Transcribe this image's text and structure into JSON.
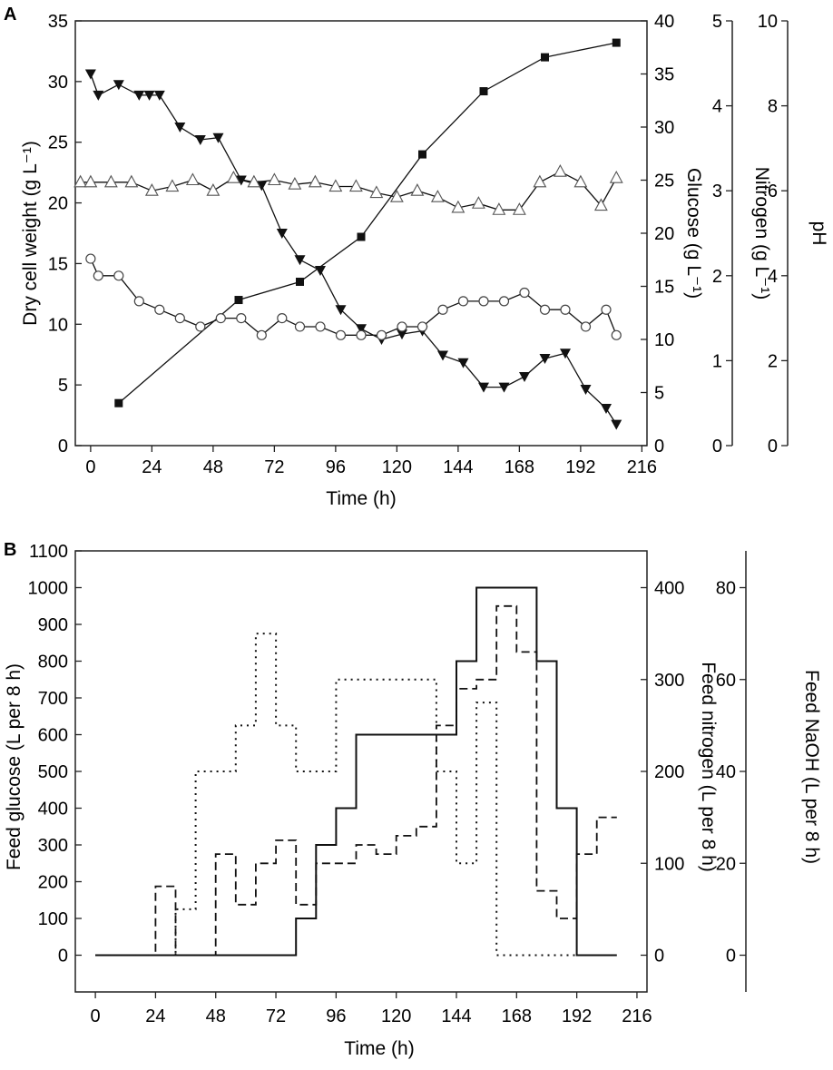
{
  "chart_data": [
    {
      "panel": "A",
      "type": "line",
      "xlabel": "Time (h)",
      "xlim": [
        -6,
        218
      ],
      "xticks": [
        "0",
        "24",
        "48",
        "72",
        "96",
        "120",
        "144",
        "168",
        "192",
        "216"
      ],
      "axes": [
        {
          "id": "dcw",
          "label": "Dry cell weight (g L⁻¹)",
          "side": "left",
          "ylim": [
            0,
            35
          ],
          "ticks": [
            "0",
            "5",
            "10",
            "15",
            "20",
            "25",
            "30",
            "35"
          ]
        },
        {
          "id": "glc",
          "label": "Glucose (g L⁻¹)",
          "side": "right1",
          "ylim": [
            0,
            40
          ],
          "ticks": [
            "0",
            "5",
            "10",
            "15",
            "20",
            "25",
            "30",
            "35",
            "40"
          ]
        },
        {
          "id": "nit",
          "label": "Nitrogen (g L⁻¹)",
          "side": "right2",
          "ylim": [
            0,
            5
          ],
          "ticks": [
            "0",
            "1",
            "2",
            "3",
            "4",
            "5"
          ]
        },
        {
          "id": "ph",
          "label": "pH",
          "side": "right3",
          "ylim": [
            0,
            10
          ],
          "ticks": [
            "0",
            "2",
            "4",
            "6",
            "8",
            "10"
          ]
        }
      ],
      "series": [
        {
          "name": "Dry cell weight",
          "axis": "dcw",
          "marker": "filled-square",
          "x": [
            11,
            58,
            82,
            106,
            130,
            154,
            178,
            206
          ],
          "y": [
            3.5,
            12.0,
            13.5,
            17.2,
            24.0,
            29.2,
            32.0,
            33.2
          ]
        },
        {
          "name": "Glucose",
          "axis": "glc",
          "marker": "filled-triangle-down",
          "x": [
            0,
            3,
            11,
            19,
            23,
            27,
            35,
            43,
            50,
            59,
            67,
            75,
            82,
            90,
            98,
            106,
            114,
            122,
            130,
            138,
            146,
            154,
            162,
            170,
            178,
            186,
            194,
            202,
            206
          ],
          "y": [
            35.0,
            33.0,
            34.0,
            33.0,
            33.0,
            33.0,
            30.0,
            28.8,
            29.0,
            25.0,
            24.5,
            20.0,
            17.5,
            16.5,
            12.8,
            11.0,
            10.0,
            10.5,
            10.8,
            8.5,
            7.8,
            5.5,
            5.5,
            6.5,
            8.2,
            8.7,
            5.3,
            3.5,
            2.0
          ]
        },
        {
          "name": "Nitrogen",
          "axis": "nit",
          "marker": "open-circle",
          "x": [
            0,
            3,
            11,
            19,
            27,
            35,
            43,
            51,
            59,
            67,
            75,
            82,
            90,
            98,
            106,
            114,
            122,
            130,
            138,
            146,
            154,
            162,
            170,
            178,
            186,
            194,
            202,
            206
          ],
          "y": [
            2.2,
            2.0,
            2.0,
            1.7,
            1.6,
            1.5,
            1.4,
            1.5,
            1.5,
            1.3,
            1.5,
            1.4,
            1.4,
            1.3,
            1.3,
            1.3,
            1.4,
            1.4,
            1.6,
            1.7,
            1.7,
            1.7,
            1.8,
            1.6,
            1.6,
            1.4,
            1.6,
            1.3
          ]
        },
        {
          "name": "pH",
          "axis": "ph",
          "marker": "open-triangle-up",
          "x": [
            -4,
            0,
            8,
            16,
            24,
            32,
            40,
            48,
            56,
            64,
            72,
            80,
            88,
            96,
            104,
            112,
            120,
            128,
            136,
            144,
            152,
            160,
            168,
            176,
            184,
            192,
            200,
            206
          ],
          "y": [
            6.2,
            6.2,
            6.2,
            6.2,
            6.0,
            6.1,
            6.25,
            6.0,
            6.3,
            6.2,
            6.25,
            6.15,
            6.2,
            6.1,
            6.1,
            5.95,
            5.85,
            6.0,
            5.85,
            5.6,
            5.7,
            5.55,
            5.55,
            6.2,
            6.45,
            6.2,
            5.65,
            6.3
          ]
        }
      ]
    },
    {
      "panel": "B",
      "type": "line",
      "xlabel": "Time (h)",
      "xlim": [
        -8,
        220
      ],
      "xticks": [
        "0",
        "24",
        "48",
        "72",
        "96",
        "120",
        "144",
        "168",
        "192",
        "216"
      ],
      "axes": [
        {
          "id": "fglc",
          "label": "Feed glucose (L per 8 h)",
          "side": "left",
          "ylim": [
            -100,
            1100
          ],
          "ticks": [
            "0",
            "100",
            "200",
            "300",
            "400",
            "500",
            "600",
            "700",
            "800",
            "900",
            "1000",
            "1100"
          ]
        },
        {
          "id": "fnit",
          "label": "Feed nitrogen (L per 8 h)",
          "side": "right1",
          "ylim": [
            -40,
            440
          ],
          "ticks": [
            "0",
            "100",
            "200",
            "300",
            "400"
          ]
        },
        {
          "id": "fnaoh",
          "label": "Feed NaOH (L per 8 h)",
          "side": "right2",
          "ylim": [
            -8,
            88
          ],
          "ticks": [
            "0",
            "20",
            "40",
            "60",
            "80"
          ]
        }
      ],
      "series": [
        {
          "name": "Feed glucose",
          "axis": "fglc",
          "style": "solid",
          "x": [
            0,
            80,
            80,
            88,
            88,
            96,
            96,
            104,
            104,
            144,
            144,
            152,
            152,
            176,
            176,
            184,
            184,
            192,
            192,
            200,
            200,
            208
          ],
          "y": [
            0,
            0,
            100,
            100,
            300,
            300,
            400,
            400,
            600,
            600,
            800,
            800,
            1000,
            1000,
            800,
            800,
            400,
            400,
            0,
            0,
            0,
            0
          ]
        },
        {
          "name": "Feed nitrogen",
          "axis": "fnit",
          "style": "dashed",
          "x": [
            0,
            24,
            24,
            32,
            32,
            48,
            48,
            56,
            56,
            64,
            64,
            72,
            72,
            80,
            80,
            88,
            88,
            96,
            96,
            104,
            104,
            112,
            112,
            120,
            120,
            128,
            128,
            136,
            136,
            144,
            144,
            152,
            152,
            160,
            160,
            168,
            168,
            176,
            176,
            184,
            184,
            192,
            192,
            200,
            200,
            208
          ],
          "y": [
            0,
            0,
            75,
            75,
            0,
            0,
            110,
            110,
            55,
            55,
            100,
            100,
            125,
            125,
            55,
            55,
            100,
            100,
            100,
            100,
            120,
            120,
            110,
            110,
            130,
            130,
            140,
            140,
            250,
            250,
            290,
            290,
            300,
            300,
            380,
            380,
            330,
            330,
            70,
            70,
            40,
            40,
            110,
            110,
            150,
            150
          ]
        },
        {
          "name": "Feed NaOH",
          "axis": "fnaoh",
          "style": "dotted",
          "x": [
            0,
            32,
            32,
            40,
            40,
            56,
            56,
            64,
            64,
            72,
            72,
            80,
            80,
            96,
            96,
            136,
            136,
            144,
            144,
            152,
            152,
            160,
            160,
            208
          ],
          "y": [
            0,
            0,
            10,
            10,
            40,
            40,
            50,
            50,
            70,
            70,
            50,
            50,
            40,
            40,
            60,
            60,
            40,
            40,
            20,
            20,
            55,
            55,
            0,
            0
          ]
        }
      ]
    }
  ],
  "panels": {
    "a": {
      "label": "A"
    },
    "b": {
      "label": "B"
    }
  }
}
